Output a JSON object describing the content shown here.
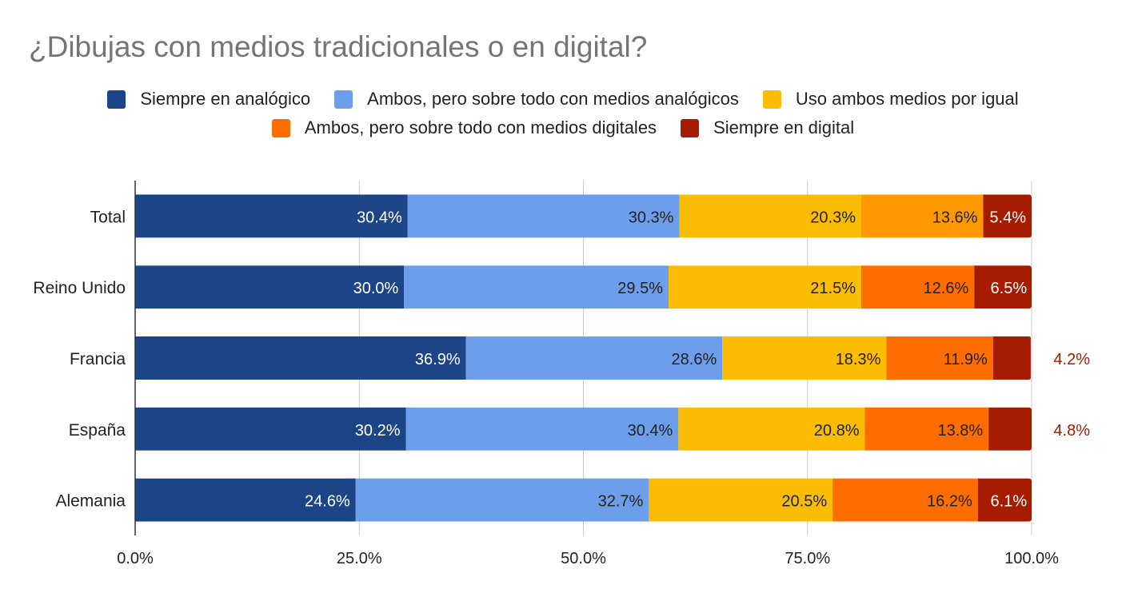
{
  "chart_data": {
    "type": "bar",
    "orientation": "horizontal",
    "stacked": true,
    "title": "¿Dibujas con medios tradicionales o en digital?",
    "categories": [
      "Total",
      "Reino Unido",
      "Francia",
      "España",
      "Alemania"
    ],
    "series": [
      {
        "name": "Siempre en analógico",
        "color": "#1c4587",
        "values": [
          30.4,
          30.0,
          36.9,
          30.2,
          24.6
        ]
      },
      {
        "name": "Ambos, pero sobre todo con medios analógicos",
        "color": "#6d9eeb",
        "values": [
          30.3,
          29.5,
          28.6,
          30.4,
          32.7
        ]
      },
      {
        "name": "Uso ambos medios por igual",
        "color": "#fbbc04",
        "values": [
          20.3,
          21.5,
          18.3,
          20.8,
          20.5
        ]
      },
      {
        "name": "Ambos, pero sobre todo con medios digitales",
        "color": "#ff6d01",
        "values": [
          13.6,
          12.6,
          11.9,
          13.8,
          16.2
        ]
      },
      {
        "name": "Siempre en digital",
        "color": "#a61c00",
        "values": [
          5.4,
          6.5,
          4.2,
          4.8,
          6.1
        ]
      }
    ],
    "bar_colors_override": {
      "Total": {
        "Ambos, pero sobre todo con medios digitales": "#ff9900"
      }
    },
    "value_labels": [
      [
        "30.4%",
        "30.3%",
        "20.3%",
        "13.6%",
        "5.4%"
      ],
      [
        "30.0%",
        "29.5%",
        "21.5%",
        "12.6%",
        "6.5%"
      ],
      [
        "36.9%",
        "28.6%",
        "18.3%",
        "11.9%",
        "4.2%"
      ],
      [
        "30.2%",
        "30.4%",
        "20.8%",
        "13.8%",
        "4.8%"
      ],
      [
        "24.6%",
        "32.7%",
        "20.5%",
        "16.2%",
        "6.1%"
      ]
    ],
    "xlim": [
      0,
      100
    ],
    "xticks": [
      0,
      25,
      50,
      75,
      100
    ],
    "xtick_labels": [
      "0.0%",
      "25.0%",
      "50.0%",
      "75.0%",
      "100.0%"
    ],
    "grid": true,
    "legend_position": "top"
  }
}
